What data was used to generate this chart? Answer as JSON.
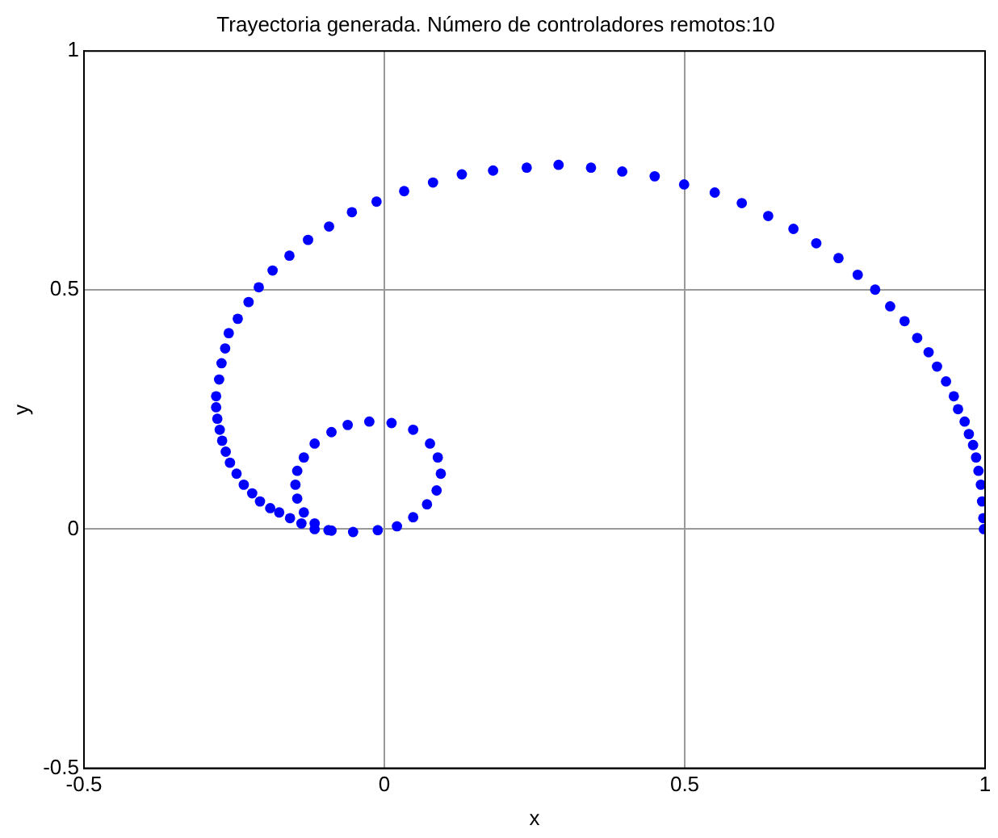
{
  "chart_data": {
    "type": "scatter",
    "title": "Trayectoria generada. Número de controladores remotos:10",
    "xlabel": "x",
    "ylabel": "y",
    "xlim": [
      -0.5,
      1
    ],
    "ylim": [
      -0.5,
      1
    ],
    "xticks": [
      -0.5,
      0,
      0.5,
      1
    ],
    "yticks": [
      -0.5,
      0,
      0.5,
      1
    ],
    "grid": true,
    "legend": false,
    "marker": "circle",
    "series": [
      {
        "color": "#0000ff",
        "x": [
          0.998,
          0.997,
          0.995,
          0.993,
          0.989,
          0.985,
          0.98,
          0.973,
          0.966,
          0.955,
          0.948,
          0.935,
          0.92,
          0.906,
          0.887,
          0.866,
          0.842,
          0.817,
          0.788,
          0.756,
          0.719,
          0.681,
          0.639,
          0.595,
          0.55,
          0.499,
          0.45,
          0.396,
          0.344,
          0.29,
          0.237,
          0.181,
          0.129,
          0.081,
          0.033,
          -0.013,
          -0.054,
          -0.092,
          -0.127,
          -0.158,
          -0.186,
          -0.209,
          -0.226,
          -0.244,
          -0.259,
          -0.265,
          -0.271,
          -0.275,
          -0.28,
          -0.28,
          -0.278,
          -0.274,
          -0.27,
          -0.264,
          -0.257,
          -0.246,
          -0.234,
          -0.22,
          -0.207,
          -0.19,
          -0.175,
          -0.157,
          -0.138,
          -0.116,
          -0.088,
          -0.052,
          -0.011,
          0.021,
          0.048,
          0.071,
          0.087,
          0.094,
          0.089,
          0.076,
          0.048,
          0.012,
          -0.025,
          -0.061,
          -0.088,
          -0.116,
          -0.134,
          -0.145,
          -0.148,
          -0.145,
          -0.134,
          -0.116,
          -0.093
        ],
        "values": [
          0,
          0.023,
          0.058,
          0.093,
          0.122,
          0.15,
          0.176,
          0.199,
          0.225,
          0.251,
          0.278,
          0.309,
          0.34,
          0.37,
          0.4,
          0.435,
          0.466,
          0.501,
          0.532,
          0.567,
          0.598,
          0.628,
          0.655,
          0.682,
          0.704,
          0.721,
          0.738,
          0.748,
          0.756,
          0.762,
          0.756,
          0.75,
          0.742,
          0.725,
          0.707,
          0.685,
          0.663,
          0.633,
          0.605,
          0.572,
          0.541,
          0.506,
          0.475,
          0.44,
          0.41,
          0.378,
          0.347,
          0.313,
          0.278,
          0.255,
          0.231,
          0.208,
          0.185,
          0.162,
          0.139,
          0.116,
          0.093,
          0.075,
          0.058,
          0.044,
          0.035,
          0.023,
          0.012,
          0,
          -0.003,
          -0.006,
          -0.002,
          0.006,
          0.025,
          0.052,
          0.081,
          0.116,
          0.15,
          0.179,
          0.208,
          0.222,
          0.225,
          0.218,
          0.203,
          0.179,
          0.15,
          0.122,
          0.093,
          0.064,
          0.035,
          0.012,
          -0.002
        ]
      }
    ]
  }
}
